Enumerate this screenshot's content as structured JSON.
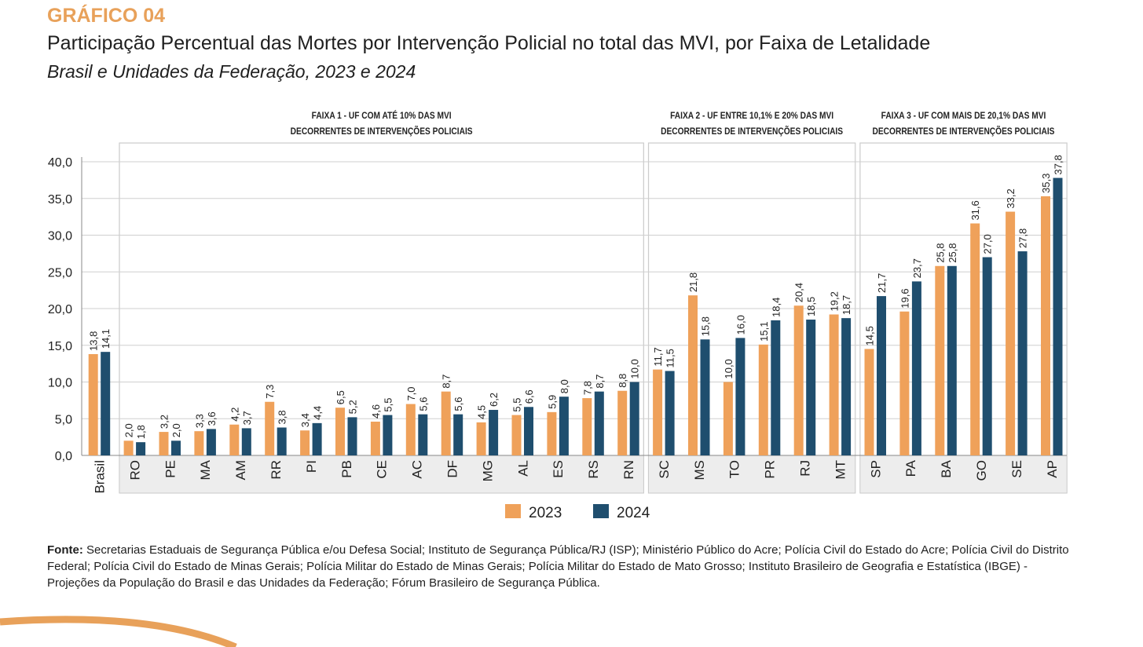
{
  "header": {
    "kicker": "GRÁFICO 04",
    "title": "Participação Percentual das Mortes por Intervenção Policial no total das MVI, por Faixa de Letalidade",
    "subtitle": "Brasil e Unidades da Federação, 2023 e 2024"
  },
  "footer": {
    "source_label": "Fonte:",
    "source_text": "Secretarias Estaduais de Segurança Pública e/ou Defesa Social; Instituto de Segurança Pública/RJ (ISP); Ministério Público do Acre; Polícia Civil do Estado do Acre; Polícia Civil do Distrito Federal; Polícia Civil do Estado de Minas Gerais; Polícia Militar do Estado de Minas Gerais; Polícia Militar do Estado de Mato Grosso; Instituto Brasileiro de Geografia e Estatística (IBGE) - Projeções da População do Brasil e das Unidades da Federação; Fórum Brasileiro de Segurança Pública."
  },
  "colors": {
    "s2023": "#EFA15A",
    "s2024": "#1F4E6E",
    "panel": "#EDEDED",
    "accent": "#E8A15A"
  },
  "chart_data": {
    "type": "bar",
    "title": "Participação Percentual das Mortes por Intervenção Policial no total das MVI, por Faixa de Letalidade",
    "ylim": [
      0,
      40
    ],
    "yticks": [
      "0,0",
      "5,0",
      "10,0",
      "15,0",
      "20,0",
      "25,0",
      "30,0",
      "35,0",
      "40,0"
    ],
    "grid": true,
    "legend": "bottom-center",
    "categories": [
      "Brasil",
      "RO",
      "PE",
      "MA",
      "AM",
      "RR",
      "PI",
      "PB",
      "CE",
      "AC",
      "DF",
      "MG",
      "AL",
      "ES",
      "RS",
      "RN",
      "SC",
      "MS",
      "TO",
      "PR",
      "RJ",
      "MT",
      "SP",
      "PA",
      "BA",
      "GO",
      "SE",
      "AP"
    ],
    "series": [
      {
        "name": "2023",
        "values": [
          13.8,
          2.0,
          3.2,
          3.3,
          4.2,
          7.3,
          3.4,
          6.5,
          4.6,
          7.0,
          8.7,
          4.5,
          5.5,
          5.9,
          7.8,
          8.8,
          11.7,
          21.8,
          10.0,
          15.1,
          20.4,
          19.2,
          14.5,
          19.6,
          25.8,
          31.6,
          33.2,
          35.3
        ],
        "labels": [
          "13,8",
          "2,0",
          "3,2",
          "3,3",
          "4,2",
          "7,3",
          "3,4",
          "6,5",
          "4,6",
          "7,0",
          "8,7",
          "4,5",
          "5,5",
          "5,9",
          "7,8",
          "8,8",
          "11,7",
          "21,8",
          "10,0",
          "15,1",
          "20,4",
          "19,2",
          "14,5",
          "19,6",
          "25,8",
          "31,6",
          "33,2",
          "35,3"
        ]
      },
      {
        "name": "2024",
        "values": [
          14.1,
          1.8,
          2.0,
          3.6,
          3.7,
          3.8,
          4.4,
          5.2,
          5.5,
          5.6,
          5.6,
          6.2,
          6.6,
          8.0,
          8.7,
          10.0,
          11.5,
          15.8,
          16.0,
          18.4,
          18.5,
          18.7,
          21.7,
          23.7,
          25.8,
          27.0,
          27.8,
          37.8
        ],
        "labels": [
          "14,1",
          "1,8",
          "2,0",
          "3,6",
          "3,7",
          "3,8",
          "4,4",
          "5,2",
          "5,5",
          "5,6",
          "5,6",
          "6,2",
          "6,6",
          "8,0",
          "8,7",
          "10,0",
          "11,5",
          "15,8",
          "16,0",
          "18,4",
          "18,5",
          "18,7",
          "21,7",
          "23,7",
          "25,8",
          "27,0",
          "27,8",
          "37,8"
        ]
      }
    ],
    "groups": [
      {
        "label_line1": "FAIXA 1 - UF COM ATÉ 10% DAS MVI",
        "label_line2": "DECORRENTES DE INTERVENÇÕES POLICIAIS",
        "from": 1,
        "to": 15
      },
      {
        "label_line1": "FAIXA 2 - UF ENTRE 10,1% E 20% DAS MVI",
        "label_line2": "DECORRENTES DE INTERVENÇÕES POLICIAIS",
        "from": 16,
        "to": 21
      },
      {
        "label_line1": "FAIXA 3 - UF COM MAIS DE 20,1% DAS MVI",
        "label_line2": "DECORRENTES DE INTERVENÇÕES POLICIAIS",
        "from": 22,
        "to": 27
      }
    ]
  }
}
